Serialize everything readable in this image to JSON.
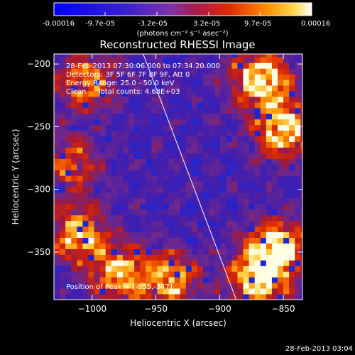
{
  "colorbar": {
    "tick_labels": [
      "-0.00016",
      "-9.7e-05",
      "-3.2e-05",
      "3.2e-05",
      "9.7e-05",
      "0.00016"
    ],
    "unit_label": "(photons cm⁻² s⁻¹ asec⁻²)",
    "range": [
      -0.00016,
      0.00016
    ]
  },
  "chart_data": {
    "type": "heatmap",
    "title": "Reconstructed RHESSI Image",
    "xlabel": "Heliocentric X (arcsec)",
    "ylabel": "Heliocentric Y (arcsec)",
    "xlim": [
      -1030,
      -835
    ],
    "ylim": [
      -388,
      -192
    ],
    "x_ticks": [
      -1000,
      -950,
      -900,
      -850
    ],
    "y_ticks": [
      -200,
      -250,
      -300,
      -350
    ],
    "x_tick_labels": [
      "−1000",
      "−950",
      "−900",
      "−850"
    ],
    "y_tick_labels": [
      "−200",
      "−250",
      "−300",
      "−350"
    ],
    "limb_line": {
      "x": [
        -960,
        -887
      ],
      "y": [
        -192,
        -388
      ]
    },
    "annotations": [
      "28-Feb-2013 07:30:06.000 to 07:34:20.000",
      "Detectors: 3F 5F 6F 7F 8F 9F, Att 0",
      "Energy Range: 25.0 - 50.0 keV",
      "Clean     Total counts: 4.68E+03"
    ],
    "peak_label": "Position of Peak = [-855,-347]",
    "peak": [
      -855,
      -347
    ],
    "bright_regions": [
      {
        "x": -868,
        "y": -212,
        "level": 0.95
      },
      {
        "x": -850,
        "y": -252,
        "level": 0.9
      },
      {
        "x": -855,
        "y": -347,
        "level": 1.0
      },
      {
        "x": -870,
        "y": -372,
        "level": 0.85
      },
      {
        "x": -1010,
        "y": -336,
        "level": 0.8
      },
      {
        "x": -978,
        "y": -368,
        "level": 0.75
      },
      {
        "x": -1005,
        "y": -214,
        "level": 0.65
      },
      {
        "x": -938,
        "y": -372,
        "level": 0.7
      },
      {
        "x": -1015,
        "y": -280,
        "level": 0.55
      }
    ]
  },
  "footer": {
    "timestamp": "28-Feb-2013 03:04"
  }
}
